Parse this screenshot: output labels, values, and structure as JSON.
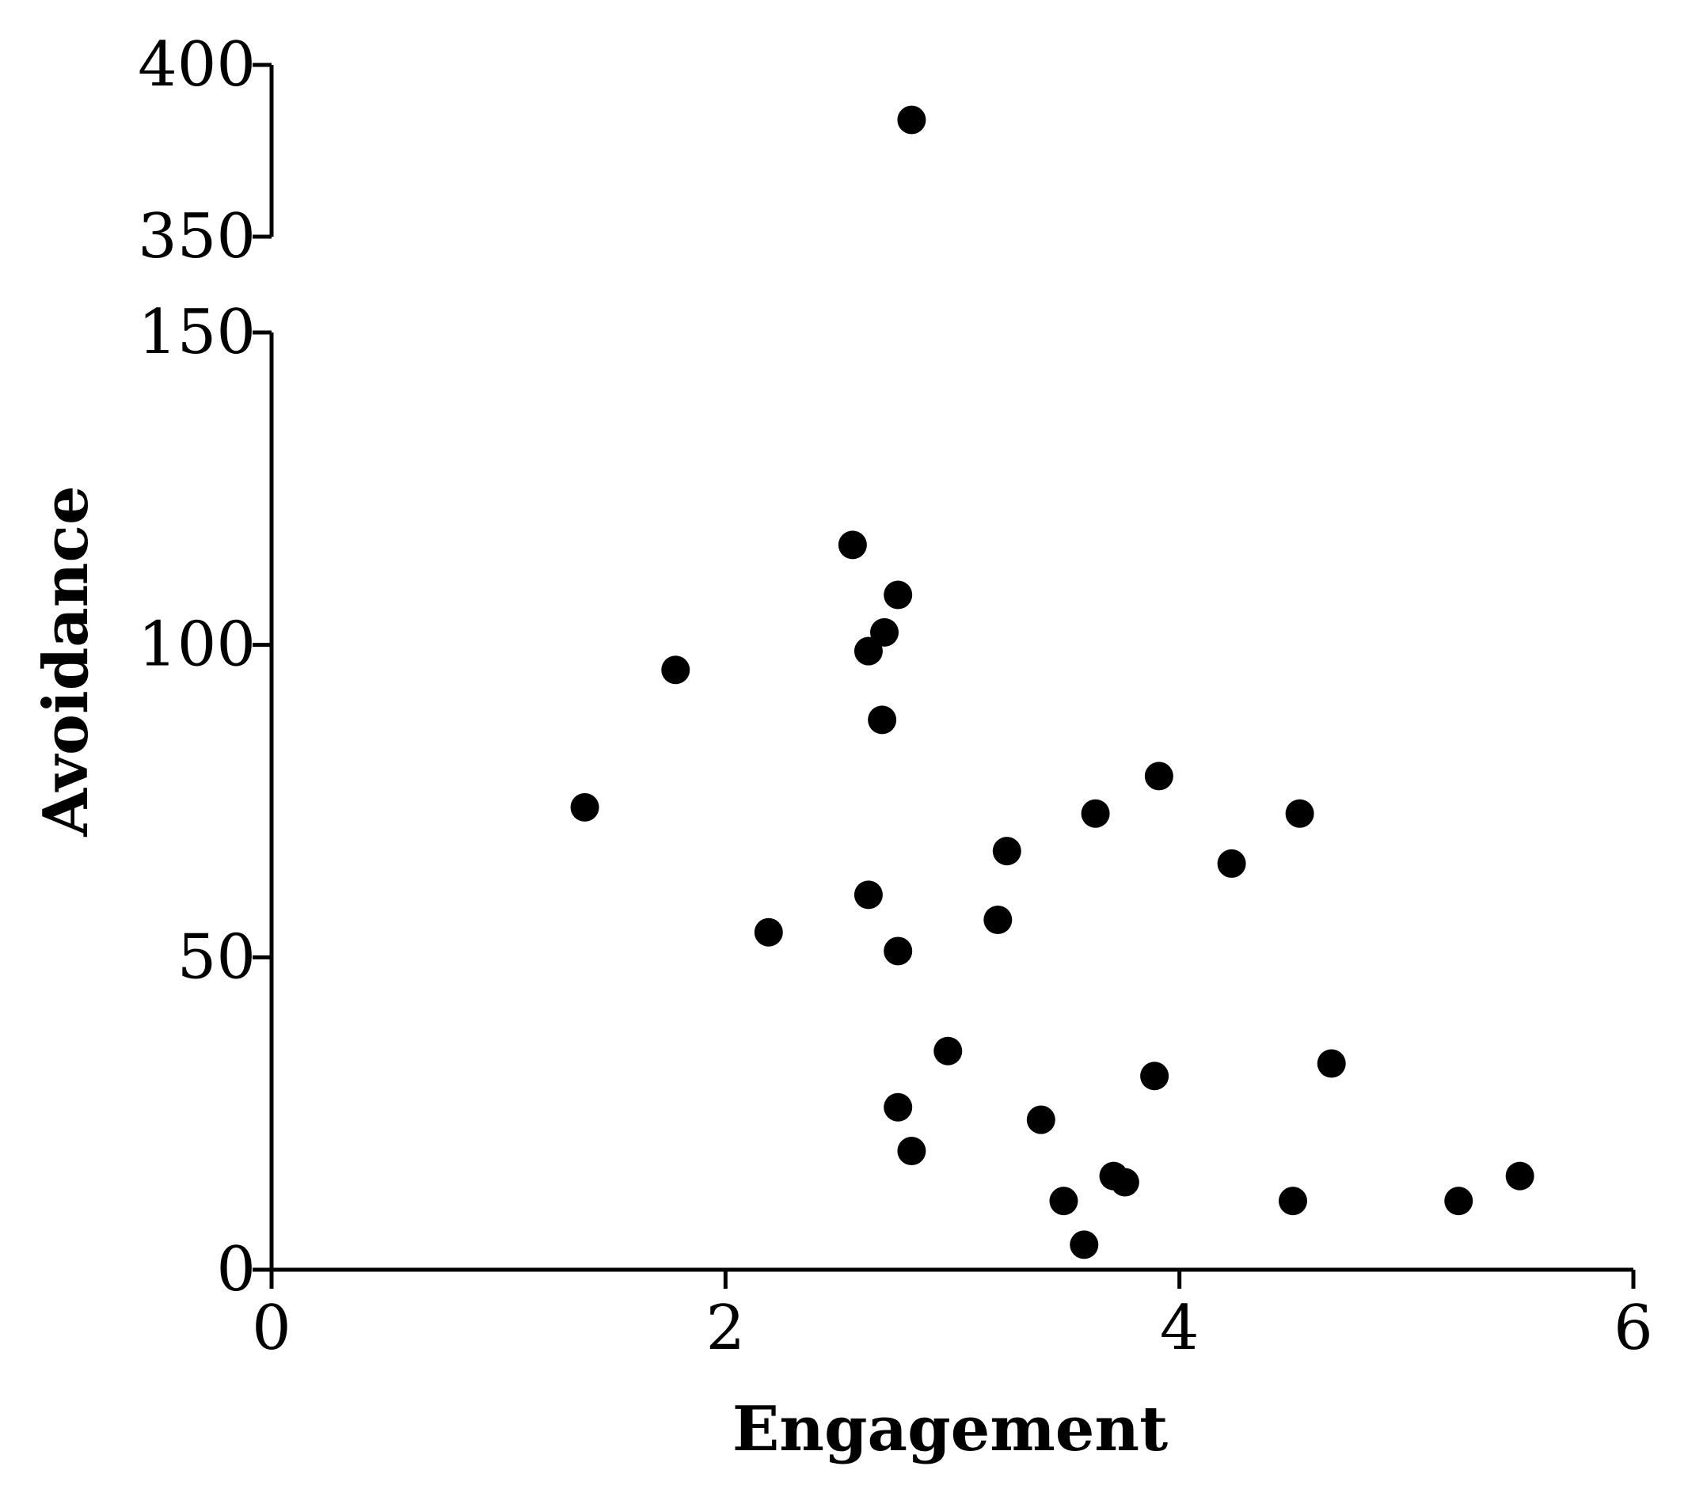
{
  "chart_data": {
    "type": "scatter",
    "title": "",
    "xlabel": "Engagement",
    "ylabel": "Avoidance",
    "xlim": [
      0,
      6
    ],
    "x_ticks": [
      0,
      2,
      4,
      6
    ],
    "y_segments": [
      {
        "range": [
          0,
          150
        ],
        "ticks": [
          0,
          50,
          100,
          150
        ]
      },
      {
        "range": [
          350,
          400
        ],
        "ticks": [
          350,
          400
        ]
      }
    ],
    "y_axis_break": [
      150,
      350
    ],
    "grid": false,
    "legend": "none",
    "marker_color": "#000000",
    "points": [
      {
        "x": 1.38,
        "y": 74
      },
      {
        "x": 1.78,
        "y": 96
      },
      {
        "x": 2.19,
        "y": 54
      },
      {
        "x": 2.56,
        "y": 116
      },
      {
        "x": 2.63,
        "y": 99
      },
      {
        "x": 2.7,
        "y": 102
      },
      {
        "x": 2.76,
        "y": 108
      },
      {
        "x": 2.69,
        "y": 88
      },
      {
        "x": 2.63,
        "y": 60
      },
      {
        "x": 2.76,
        "y": 51
      },
      {
        "x": 2.82,
        "y": 384
      },
      {
        "x": 2.98,
        "y": 35
      },
      {
        "x": 2.76,
        "y": 26
      },
      {
        "x": 2.82,
        "y": 19
      },
      {
        "x": 3.2,
        "y": 56
      },
      {
        "x": 3.24,
        "y": 67
      },
      {
        "x": 3.39,
        "y": 24
      },
      {
        "x": 3.49,
        "y": 11
      },
      {
        "x": 3.58,
        "y": 4
      },
      {
        "x": 3.63,
        "y": 73
      },
      {
        "x": 3.71,
        "y": 15
      },
      {
        "x": 3.76,
        "y": 14
      },
      {
        "x": 3.89,
        "y": 31
      },
      {
        "x": 3.91,
        "y": 79
      },
      {
        "x": 4.23,
        "y": 65
      },
      {
        "x": 4.5,
        "y": 11
      },
      {
        "x": 4.53,
        "y": 73
      },
      {
        "x": 4.67,
        "y": 33
      },
      {
        "x": 5.23,
        "y": 11
      },
      {
        "x": 5.5,
        "y": 15
      }
    ]
  }
}
